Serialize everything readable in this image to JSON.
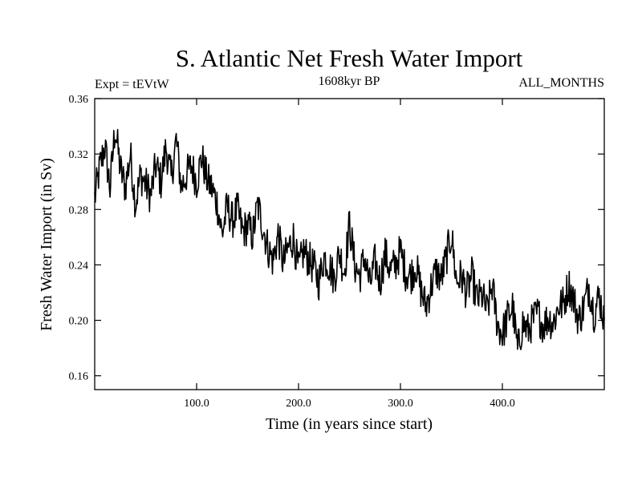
{
  "chart_data": {
    "type": "line",
    "title": "S. Atlantic Net Fresh Water Import",
    "subtitle_left": "Expt = tEVtW",
    "subtitle_center": "1608kyr BP",
    "subtitle_right": "ALL_MONTHS",
    "xlabel": "Time (in years since start)",
    "ylabel": "Fresh Water Import (in Sv)",
    "xlim": [
      0,
      500
    ],
    "ylim": [
      0.15,
      0.36
    ],
    "xticks": [
      100,
      200,
      300,
      400
    ],
    "xtick_labels": [
      "100.0",
      "200.0",
      "300.0",
      "400.0"
    ],
    "yticks": [
      0.16,
      0.2,
      0.24,
      0.28,
      0.32,
      0.36
    ],
    "ytick_labels": [
      "0.16",
      "0.20",
      "0.24",
      "0.28",
      "0.32",
      "0.36"
    ],
    "series": [
      {
        "name": "Net Fresh Water Import",
        "x": [
          0,
          5,
          10,
          15,
          20,
          25,
          30,
          35,
          40,
          45,
          50,
          55,
          60,
          65,
          70,
          75,
          80,
          85,
          90,
          95,
          100,
          105,
          110,
          115,
          120,
          125,
          130,
          135,
          140,
          145,
          150,
          155,
          160,
          165,
          170,
          175,
          180,
          185,
          190,
          195,
          200,
          205,
          210,
          215,
          220,
          225,
          230,
          235,
          240,
          245,
          250,
          255,
          260,
          265,
          270,
          275,
          280,
          285,
          290,
          295,
          300,
          305,
          310,
          315,
          320,
          325,
          330,
          335,
          340,
          345,
          350,
          355,
          360,
          365,
          370,
          375,
          380,
          385,
          390,
          395,
          400,
          405,
          410,
          415,
          420,
          425,
          430,
          435,
          440,
          445,
          450,
          455,
          460,
          465,
          470,
          475,
          480,
          485,
          490,
          495,
          500
        ],
        "values": [
          0.288,
          0.31,
          0.326,
          0.295,
          0.339,
          0.31,
          0.296,
          0.32,
          0.284,
          0.305,
          0.298,
          0.29,
          0.312,
          0.3,
          0.325,
          0.302,
          0.33,
          0.296,
          0.305,
          0.312,
          0.3,
          0.318,
          0.302,
          0.295,
          0.285,
          0.262,
          0.282,
          0.272,
          0.28,
          0.264,
          0.268,
          0.261,
          0.283,
          0.268,
          0.252,
          0.243,
          0.262,
          0.241,
          0.252,
          0.26,
          0.236,
          0.25,
          0.244,
          0.238,
          0.228,
          0.246,
          0.24,
          0.23,
          0.249,
          0.235,
          0.27,
          0.24,
          0.232,
          0.246,
          0.225,
          0.242,
          0.228,
          0.248,
          0.236,
          0.24,
          0.25,
          0.235,
          0.232,
          0.24,
          0.222,
          0.21,
          0.224,
          0.236,
          0.23,
          0.245,
          0.262,
          0.228,
          0.232,
          0.22,
          0.232,
          0.215,
          0.218,
          0.206,
          0.225,
          0.198,
          0.19,
          0.202,
          0.21,
          0.178,
          0.198,
          0.192,
          0.2,
          0.205,
          0.196,
          0.202,
          0.198,
          0.21,
          0.212,
          0.226,
          0.215,
          0.2,
          0.21,
          0.225,
          0.205,
          0.218,
          0.2
        ],
        "color": "#000000"
      }
    ]
  }
}
